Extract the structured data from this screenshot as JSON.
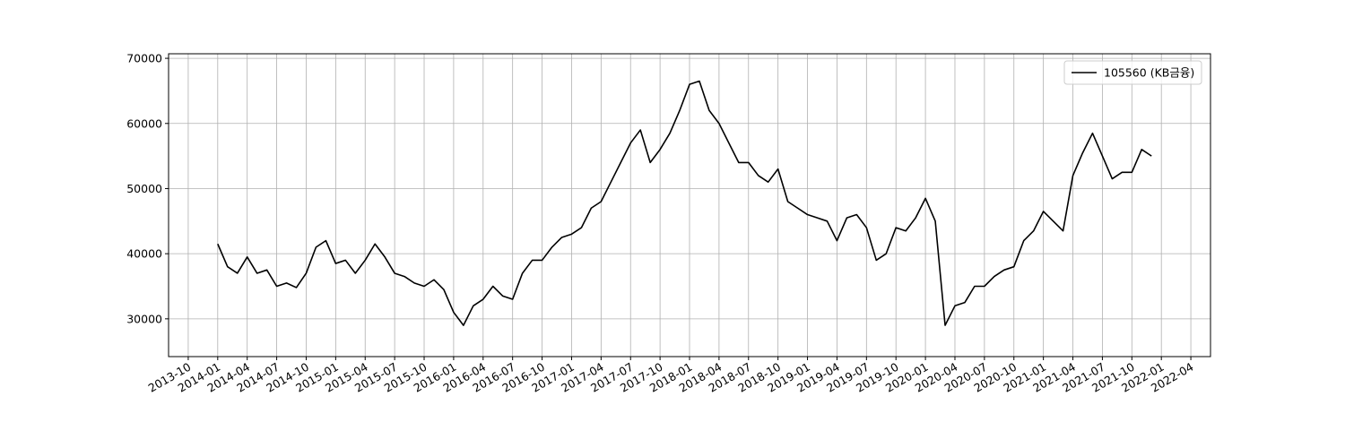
{
  "chart_data": {
    "type": "line",
    "x": [
      "2014-01",
      "2014-02",
      "2014-03",
      "2014-04",
      "2014-05",
      "2014-06",
      "2014-07",
      "2014-08",
      "2014-09",
      "2014-10",
      "2014-11",
      "2014-12",
      "2015-01",
      "2015-02",
      "2015-03",
      "2015-04",
      "2015-05",
      "2015-06",
      "2015-07",
      "2015-08",
      "2015-09",
      "2015-10",
      "2015-11",
      "2015-12",
      "2016-01",
      "2016-02",
      "2016-03",
      "2016-04",
      "2016-05",
      "2016-06",
      "2016-07",
      "2016-08",
      "2016-09",
      "2016-10",
      "2016-11",
      "2016-12",
      "2017-01",
      "2017-02",
      "2017-03",
      "2017-04",
      "2017-05",
      "2017-06",
      "2017-07",
      "2017-08",
      "2017-09",
      "2017-10",
      "2017-11",
      "2017-12",
      "2018-01",
      "2018-02",
      "2018-03",
      "2018-04",
      "2018-05",
      "2018-06",
      "2018-07",
      "2018-08",
      "2018-09",
      "2018-10",
      "2018-11",
      "2018-12",
      "2019-01",
      "2019-02",
      "2019-03",
      "2019-04",
      "2019-05",
      "2019-06",
      "2019-07",
      "2019-08",
      "2019-09",
      "2019-10",
      "2019-11",
      "2019-12",
      "2020-01",
      "2020-02",
      "2020-03",
      "2020-04",
      "2020-05",
      "2020-06",
      "2020-07",
      "2020-08",
      "2020-09",
      "2020-10",
      "2020-11",
      "2020-12",
      "2021-01",
      "2021-02",
      "2021-03",
      "2021-04",
      "2021-05",
      "2021-06",
      "2021-07",
      "2021-08",
      "2021-09",
      "2021-10",
      "2021-11",
      "2021-12"
    ],
    "series": [
      {
        "name": "105560 (KB금융)",
        "color": "#000000",
        "values": [
          41500,
          38000,
          37000,
          39500,
          37000,
          37500,
          35000,
          35500,
          34800,
          37000,
          41000,
          42000,
          38500,
          39000,
          37000,
          39000,
          41500,
          39500,
          37000,
          36500,
          35500,
          35000,
          36000,
          34500,
          31000,
          29000,
          32000,
          33000,
          35000,
          33500,
          33000,
          37000,
          39000,
          39000,
          41000,
          42500,
          43000,
          44000,
          47000,
          48000,
          51000,
          54000,
          57000,
          59000,
          54000,
          56000,
          58500,
          62000,
          66000,
          66500,
          62000,
          60000,
          57000,
          54000,
          54000,
          52000,
          51000,
          53000,
          48000,
          47000,
          46000,
          45500,
          45000,
          42000,
          45500,
          46000,
          44000,
          39000,
          40000,
          44000,
          43500,
          45500,
          48500,
          45000,
          29000,
          32000,
          32500,
          35000,
          35000,
          36500,
          37500,
          38000,
          42000,
          43500,
          46500,
          45000,
          43500,
          52000,
          55500,
          58500,
          55000,
          51500,
          52500,
          52500,
          56000,
          55000
        ]
      }
    ],
    "xlim": [
      "2013-08",
      "2022-06"
    ],
    "xticks": [
      "2013-10",
      "2014-01",
      "2014-04",
      "2014-07",
      "2014-10",
      "2015-01",
      "2015-04",
      "2015-07",
      "2015-10",
      "2016-01",
      "2016-04",
      "2016-07",
      "2016-10",
      "2017-01",
      "2017-04",
      "2017-07",
      "2017-10",
      "2018-01",
      "2018-04",
      "2018-07",
      "2018-10",
      "2019-01",
      "2019-04",
      "2019-07",
      "2019-10",
      "2020-01",
      "2020-04",
      "2020-07",
      "2020-10",
      "2021-01",
      "2021-04",
      "2021-07",
      "2021-10",
      "2022-01",
      "2022-04"
    ],
    "ylim": [
      24200,
      70700
    ],
    "yticks": [
      30000,
      40000,
      50000,
      60000,
      70000
    ],
    "grid": true,
    "legend": "upper right"
  }
}
